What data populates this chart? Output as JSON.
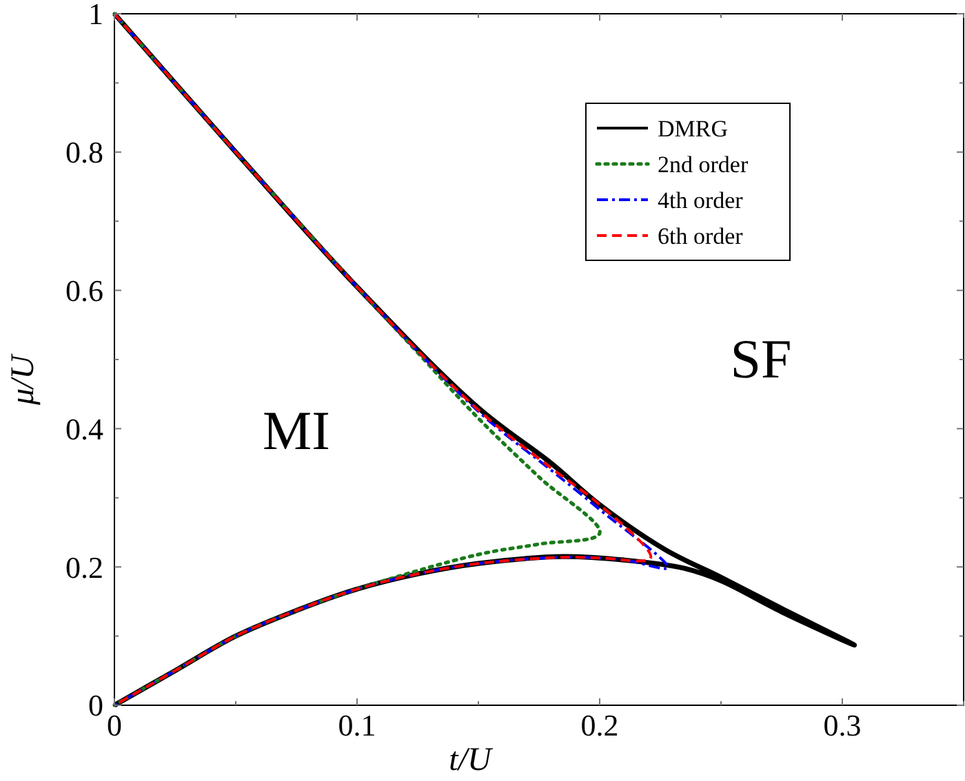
{
  "chart_data": {
    "type": "line",
    "xlabel": "t/U",
    "ylabel": "μ/U",
    "xlim": [
      0,
      0.35
    ],
    "ylim": [
      0,
      1
    ],
    "xticks": [
      0,
      {
        "value": 0.05,
        "label": null
      },
      0.1,
      {
        "value": 0.15,
        "label": null
      },
      0.2,
      {
        "value": 0.25,
        "label": null
      },
      0.3,
      {
        "value": 0.35,
        "label": null
      }
    ],
    "yticks": [
      0,
      {
        "value": 0.1,
        "label": null
      },
      0.2,
      {
        "value": 0.3,
        "label": null
      },
      0.4,
      {
        "value": 0.5,
        "label": null
      },
      0.6,
      {
        "value": 0.7,
        "label": null
      },
      0.8,
      {
        "value": 0.9,
        "label": null
      },
      1
    ],
    "legend": "top right",
    "grid": false,
    "marker": "none",
    "series": [
      {
        "name": "DMRG",
        "color": "#000000",
        "line_style": "solid",
        "x": [
          0,
          0.05,
          0.1,
          0.15,
          0.18,
          0.2,
          0.227,
          0.25,
          0.275,
          0.305,
          0.275,
          0.25,
          0.235,
          0.21,
          0.185,
          0.15,
          0.125,
          0.1,
          0.075,
          0.05,
          0.025,
          0
        ],
        "values": [
          1,
          0.8,
          0.605,
          0.43,
          0.35,
          0.29,
          0.225,
          0.185,
          0.14,
          0.087,
          0.135,
          0.18,
          0.198,
          0.21,
          0.215,
          0.205,
          0.19,
          0.168,
          0.137,
          0.1,
          0.05,
          0
        ]
      },
      {
        "name": "2nd order",
        "color": "#1a7a1a",
        "line_style": "dotted",
        "x": [
          0,
          0.05,
          0.1,
          0.125,
          0.15,
          0.175,
          0.2,
          0.175,
          0.15,
          0.1,
          0.075,
          0.05,
          0.025,
          0
        ],
        "values": [
          1,
          0.8,
          0.605,
          0.51,
          0.415,
          0.33,
          0.249,
          0.233,
          0.218,
          0.168,
          0.137,
          0.1,
          0.05,
          0
        ]
      },
      {
        "name": "4th order",
        "color": "#0000ff",
        "line_style": "dashdot",
        "x": [
          0,
          0.05,
          0.1,
          0.15,
          0.18,
          0.2,
          0.228,
          0.21,
          0.185,
          0.15,
          0.125,
          0.1,
          0.075,
          0.05,
          0.025,
          0
        ],
        "values": [
          1,
          0.8,
          0.605,
          0.425,
          0.34,
          0.283,
          0.199,
          0.21,
          0.214,
          0.205,
          0.19,
          0.168,
          0.137,
          0.1,
          0.05,
          0
        ]
      },
      {
        "name": "6th order",
        "color": "#ff0000",
        "line_style": "dashed",
        "x": [
          0,
          0.05,
          0.1,
          0.15,
          0.18,
          0.2,
          0.221,
          0.2,
          0.185,
          0.15,
          0.125,
          0.1,
          0.075,
          0.05,
          0.025,
          0
        ],
        "values": [
          1,
          0.8,
          0.605,
          0.427,
          0.343,
          0.29,
          0.213,
          0.213,
          0.214,
          0.205,
          0.19,
          0.168,
          0.137,
          0.1,
          0.05,
          0
        ]
      }
    ],
    "annotations": [
      "MI",
      "SF"
    ]
  }
}
